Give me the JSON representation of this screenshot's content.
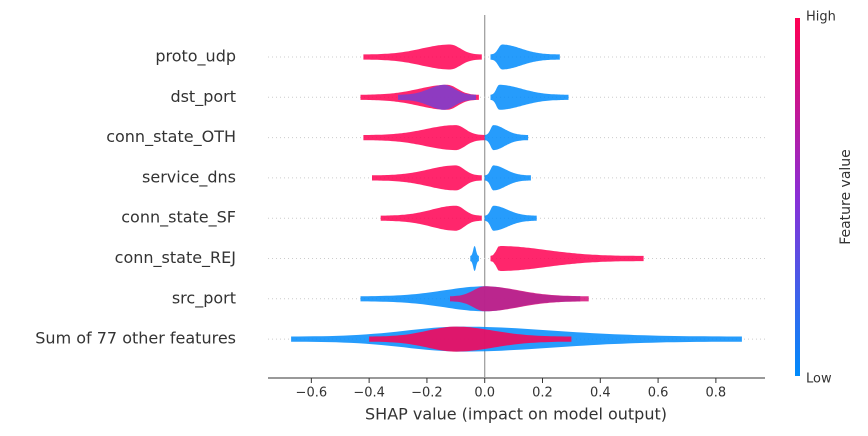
{
  "chart_data": {
    "type": "beeswarm",
    "x_label": "SHAP value (impact on model output)",
    "xlim": [
      -0.75,
      0.97
    ],
    "xticks": [
      {
        "value": -0.6,
        "label": "−0.6"
      },
      {
        "value": -0.4,
        "label": "−0.4"
      },
      {
        "value": -0.2,
        "label": "−0.2"
      },
      {
        "value": 0,
        "label": "0.0"
      },
      {
        "value": 0.2,
        "label": "0.2"
      },
      {
        "value": 0.4,
        "label": "0.4"
      },
      {
        "value": 0.6,
        "label": "0.6"
      },
      {
        "value": 0.8,
        "label": "0.8"
      }
    ],
    "colorbar": {
      "label": "Feature value",
      "high": "High",
      "low": "Low",
      "high_color": "#ff0052",
      "low_color": "#008bfb"
    },
    "features": [
      {
        "name": "proto_udp",
        "segments": [
          {
            "color": "#ff0052",
            "min": -0.42,
            "peak": -0.12,
            "max": -0.01
          },
          {
            "color": "#008bfb",
            "min": 0.02,
            "peak": 0.06,
            "max": 0.26
          }
        ]
      },
      {
        "name": "dst_port",
        "segments": [
          {
            "color": "#ff0052",
            "min": -0.43,
            "peak": -0.13,
            "max": -0.02
          },
          {
            "color": "#7a3fd0",
            "min": -0.3,
            "peak": -0.14,
            "max": -0.03
          },
          {
            "color": "#008bfb",
            "min": 0.02,
            "peak": 0.05,
            "max": 0.29
          }
        ]
      },
      {
        "name": "conn_state_OTH",
        "segments": [
          {
            "color": "#ff0052",
            "min": -0.42,
            "peak": -0.1,
            "max": 0.0
          },
          {
            "color": "#008bfb",
            "min": 0.0,
            "peak": 0.03,
            "max": 0.15
          }
        ]
      },
      {
        "name": "service_dns",
        "segments": [
          {
            "color": "#ff0052",
            "min": -0.39,
            "peak": -0.1,
            "max": -0.01
          },
          {
            "color": "#008bfb",
            "min": 0.0,
            "peak": 0.03,
            "max": 0.16
          }
        ]
      },
      {
        "name": "conn_state_SF",
        "segments": [
          {
            "color": "#ff0052",
            "min": -0.36,
            "peak": -0.1,
            "max": -0.01
          },
          {
            "color": "#008bfb",
            "min": 0.0,
            "peak": 0.03,
            "max": 0.18
          }
        ]
      },
      {
        "name": "conn_state_REJ",
        "segments": [
          {
            "color": "#008bfb",
            "min": -0.05,
            "peak": -0.035,
            "max": -0.02
          },
          {
            "color": "#ff0052",
            "min": 0.02,
            "peak": 0.05,
            "max": 0.55
          }
        ]
      },
      {
        "name": "src_port",
        "segments": [
          {
            "color": "#008bfb",
            "min": -0.43,
            "peak": 0.0,
            "max": 0.33
          },
          {
            "color": "#d6127a",
            "min": -0.12,
            "peak": 0.0,
            "max": 0.36
          }
        ]
      },
      {
        "name": "Sum of 77 other features",
        "segments": [
          {
            "color": "#008bfb",
            "min": -0.67,
            "peak": -0.08,
            "max": 0.89
          },
          {
            "color": "#ff0052",
            "min": -0.4,
            "peak": -0.1,
            "max": 0.3
          }
        ]
      }
    ]
  }
}
